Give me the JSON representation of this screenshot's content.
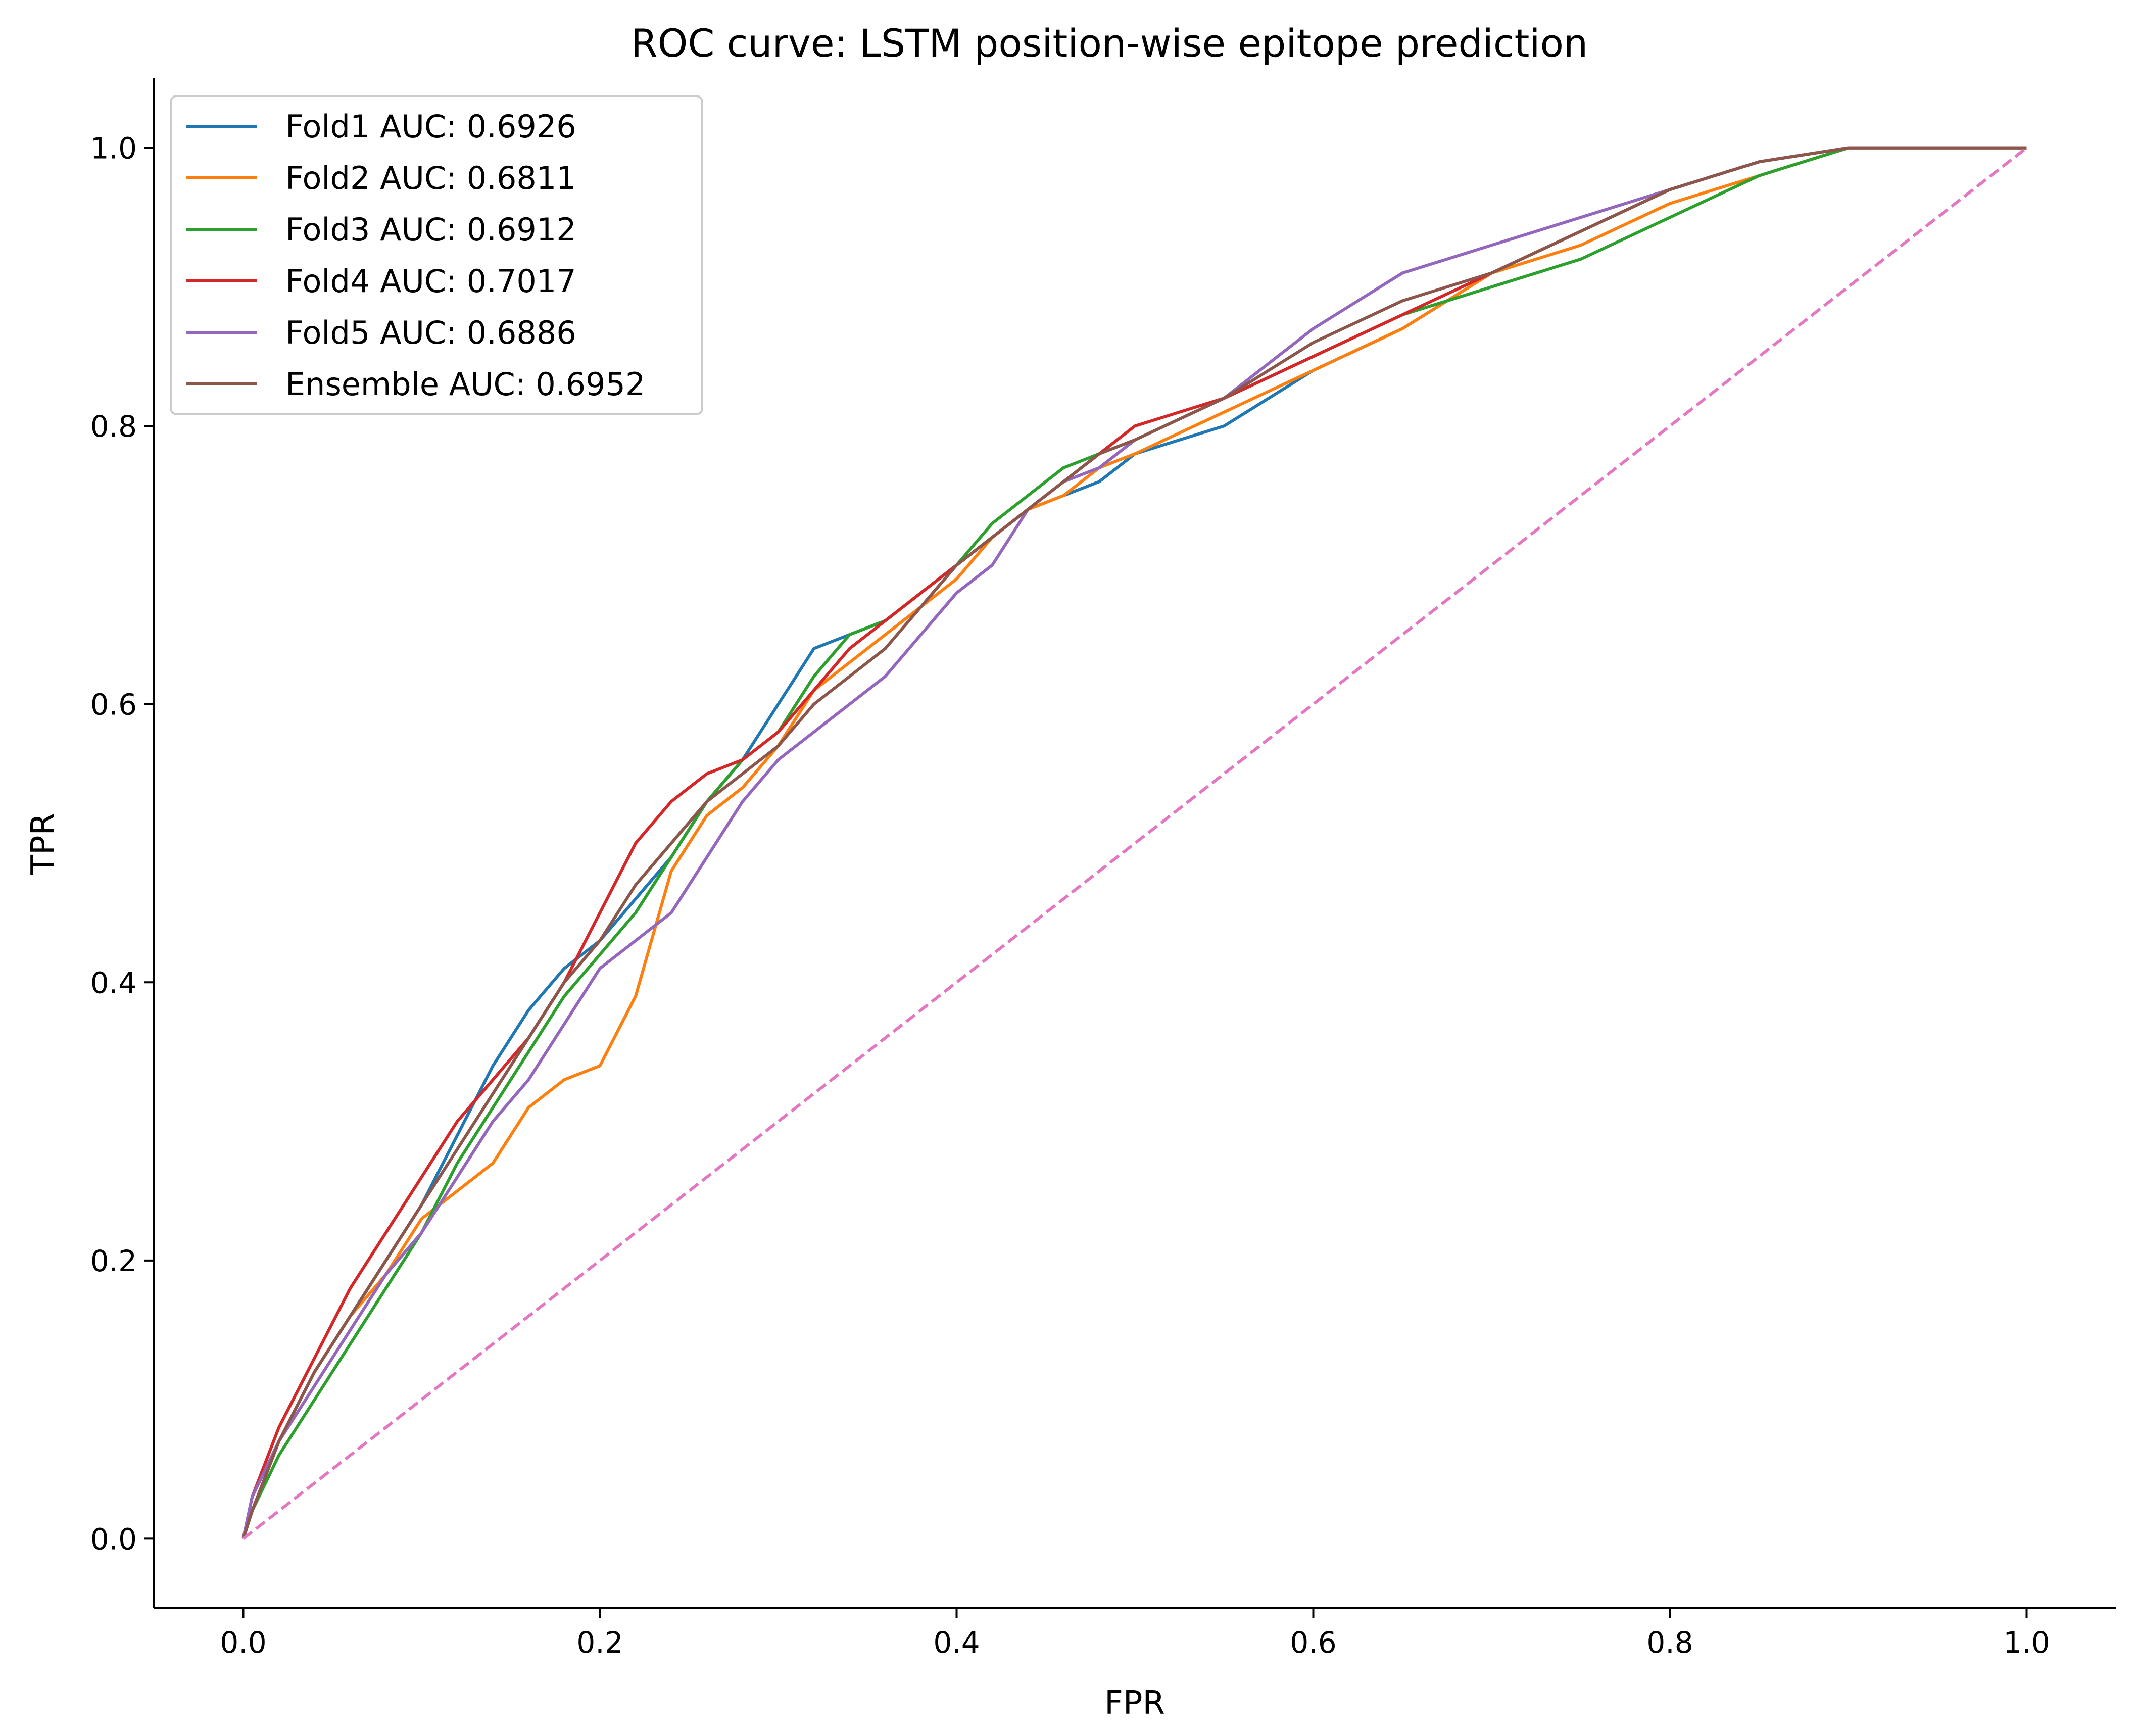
{
  "chart_data": {
    "type": "line",
    "title": "ROC curve: LSTM position-wise epitope prediction",
    "xlabel": "FPR",
    "ylabel": "TPR",
    "xlim": [
      -0.05,
      1.05
    ],
    "ylim": [
      -0.05,
      1.05
    ],
    "xticks": [
      "0.0",
      "0.2",
      "0.4",
      "0.6",
      "0.8",
      "1.0"
    ],
    "yticks": [
      "0.0",
      "0.2",
      "0.4",
      "0.6",
      "0.8",
      "1.0"
    ],
    "grid": false,
    "legend_position": "upper-left",
    "series": [
      {
        "name": "Fold1 AUC: 0.6926",
        "color": "#1f77b4",
        "style": "solid",
        "x": [
          0,
          0.005,
          0.02,
          0.04,
          0.06,
          0.08,
          0.1,
          0.12,
          0.14,
          0.16,
          0.18,
          0.2,
          0.22,
          0.24,
          0.26,
          0.28,
          0.3,
          0.32,
          0.34,
          0.36,
          0.38,
          0.4,
          0.42,
          0.44,
          0.46,
          0.48,
          0.5,
          0.55,
          0.6,
          0.65,
          0.7,
          0.75,
          0.8,
          0.85,
          0.9,
          0.95,
          1.0
        ],
        "y": [
          0,
          0.02,
          0.07,
          0.12,
          0.16,
          0.2,
          0.24,
          0.29,
          0.34,
          0.38,
          0.41,
          0.43,
          0.46,
          0.49,
          0.53,
          0.56,
          0.6,
          0.64,
          0.65,
          0.66,
          0.68,
          0.7,
          0.72,
          0.74,
          0.75,
          0.76,
          0.78,
          0.8,
          0.84,
          0.87,
          0.91,
          0.94,
          0.97,
          0.99,
          1.0,
          1.0,
          1.0
        ]
      },
      {
        "name": "Fold2 AUC: 0.6811",
        "color": "#ff7f0e",
        "style": "solid",
        "x": [
          0,
          0.005,
          0.02,
          0.04,
          0.06,
          0.08,
          0.1,
          0.12,
          0.14,
          0.16,
          0.18,
          0.2,
          0.22,
          0.24,
          0.26,
          0.28,
          0.3,
          0.32,
          0.34,
          0.36,
          0.38,
          0.4,
          0.42,
          0.44,
          0.46,
          0.48,
          0.5,
          0.55,
          0.6,
          0.65,
          0.7,
          0.75,
          0.8,
          0.85,
          0.9,
          0.95,
          1.0
        ],
        "y": [
          0,
          0.02,
          0.07,
          0.12,
          0.16,
          0.19,
          0.23,
          0.25,
          0.27,
          0.31,
          0.33,
          0.34,
          0.39,
          0.48,
          0.52,
          0.54,
          0.57,
          0.61,
          0.63,
          0.65,
          0.67,
          0.69,
          0.72,
          0.74,
          0.75,
          0.77,
          0.78,
          0.81,
          0.84,
          0.87,
          0.91,
          0.93,
          0.96,
          0.98,
          1.0,
          1.0,
          1.0
        ]
      },
      {
        "name": "Fold3 AUC: 0.6912",
        "color": "#2ca02c",
        "style": "solid",
        "x": [
          0,
          0.005,
          0.02,
          0.04,
          0.06,
          0.08,
          0.1,
          0.12,
          0.14,
          0.16,
          0.18,
          0.2,
          0.22,
          0.24,
          0.26,
          0.28,
          0.3,
          0.32,
          0.34,
          0.36,
          0.38,
          0.4,
          0.42,
          0.44,
          0.46,
          0.48,
          0.5,
          0.55,
          0.6,
          0.65,
          0.7,
          0.75,
          0.8,
          0.85,
          0.9,
          0.95,
          1.0
        ],
        "y": [
          0,
          0.02,
          0.06,
          0.1,
          0.14,
          0.18,
          0.22,
          0.27,
          0.31,
          0.35,
          0.39,
          0.42,
          0.45,
          0.49,
          0.53,
          0.56,
          0.58,
          0.62,
          0.65,
          0.66,
          0.68,
          0.7,
          0.73,
          0.75,
          0.77,
          0.78,
          0.79,
          0.82,
          0.85,
          0.88,
          0.9,
          0.92,
          0.95,
          0.98,
          1.0,
          1.0,
          1.0
        ]
      },
      {
        "name": "Fold4 AUC: 0.7017",
        "color": "#d62728",
        "style": "solid",
        "x": [
          0,
          0.005,
          0.02,
          0.04,
          0.06,
          0.08,
          0.1,
          0.12,
          0.14,
          0.16,
          0.18,
          0.2,
          0.22,
          0.24,
          0.26,
          0.28,
          0.3,
          0.32,
          0.34,
          0.36,
          0.38,
          0.4,
          0.42,
          0.44,
          0.46,
          0.48,
          0.5,
          0.55,
          0.6,
          0.65,
          0.7,
          0.75,
          0.8,
          0.85,
          0.9,
          0.95,
          1.0
        ],
        "y": [
          0,
          0.03,
          0.08,
          0.13,
          0.18,
          0.22,
          0.26,
          0.3,
          0.33,
          0.36,
          0.4,
          0.45,
          0.5,
          0.53,
          0.55,
          0.56,
          0.58,
          0.61,
          0.64,
          0.66,
          0.68,
          0.7,
          0.72,
          0.74,
          0.76,
          0.78,
          0.8,
          0.82,
          0.85,
          0.88,
          0.91,
          0.94,
          0.97,
          0.99,
          1.0,
          1.0,
          1.0
        ]
      },
      {
        "name": "Fold5 AUC: 0.6886",
        "color": "#9467bd",
        "style": "solid",
        "x": [
          0,
          0.005,
          0.02,
          0.04,
          0.06,
          0.08,
          0.1,
          0.12,
          0.14,
          0.16,
          0.18,
          0.2,
          0.22,
          0.24,
          0.26,
          0.28,
          0.3,
          0.32,
          0.34,
          0.36,
          0.38,
          0.4,
          0.42,
          0.44,
          0.46,
          0.48,
          0.5,
          0.55,
          0.6,
          0.65,
          0.7,
          0.75,
          0.8,
          0.85,
          0.9,
          0.95,
          1.0
        ],
        "y": [
          0,
          0.03,
          0.07,
          0.11,
          0.15,
          0.19,
          0.22,
          0.26,
          0.3,
          0.33,
          0.37,
          0.41,
          0.43,
          0.45,
          0.49,
          0.53,
          0.56,
          0.58,
          0.6,
          0.62,
          0.65,
          0.68,
          0.7,
          0.74,
          0.76,
          0.77,
          0.79,
          0.82,
          0.87,
          0.91,
          0.93,
          0.95,
          0.97,
          0.99,
          1.0,
          1.0,
          1.0
        ]
      },
      {
        "name": "Ensemble AUC: 0.6952",
        "color": "#8c564b",
        "style": "solid",
        "x": [
          0,
          0.005,
          0.02,
          0.04,
          0.06,
          0.08,
          0.1,
          0.12,
          0.14,
          0.16,
          0.18,
          0.2,
          0.22,
          0.24,
          0.26,
          0.28,
          0.3,
          0.32,
          0.34,
          0.36,
          0.38,
          0.4,
          0.42,
          0.44,
          0.46,
          0.48,
          0.5,
          0.55,
          0.6,
          0.65,
          0.7,
          0.75,
          0.8,
          0.85,
          0.9,
          0.95,
          1.0
        ],
        "y": [
          0,
          0.02,
          0.07,
          0.12,
          0.16,
          0.2,
          0.24,
          0.28,
          0.32,
          0.36,
          0.4,
          0.43,
          0.47,
          0.5,
          0.53,
          0.55,
          0.57,
          0.6,
          0.62,
          0.64,
          0.67,
          0.7,
          0.72,
          0.74,
          0.76,
          0.78,
          0.79,
          0.82,
          0.86,
          0.89,
          0.91,
          0.94,
          0.97,
          0.99,
          1.0,
          1.0,
          1.0
        ]
      },
      {
        "color": "#e377c2",
        "style": "dashed",
        "x": [
          0,
          1
        ],
        "y": [
          0,
          1
        ]
      }
    ]
  }
}
